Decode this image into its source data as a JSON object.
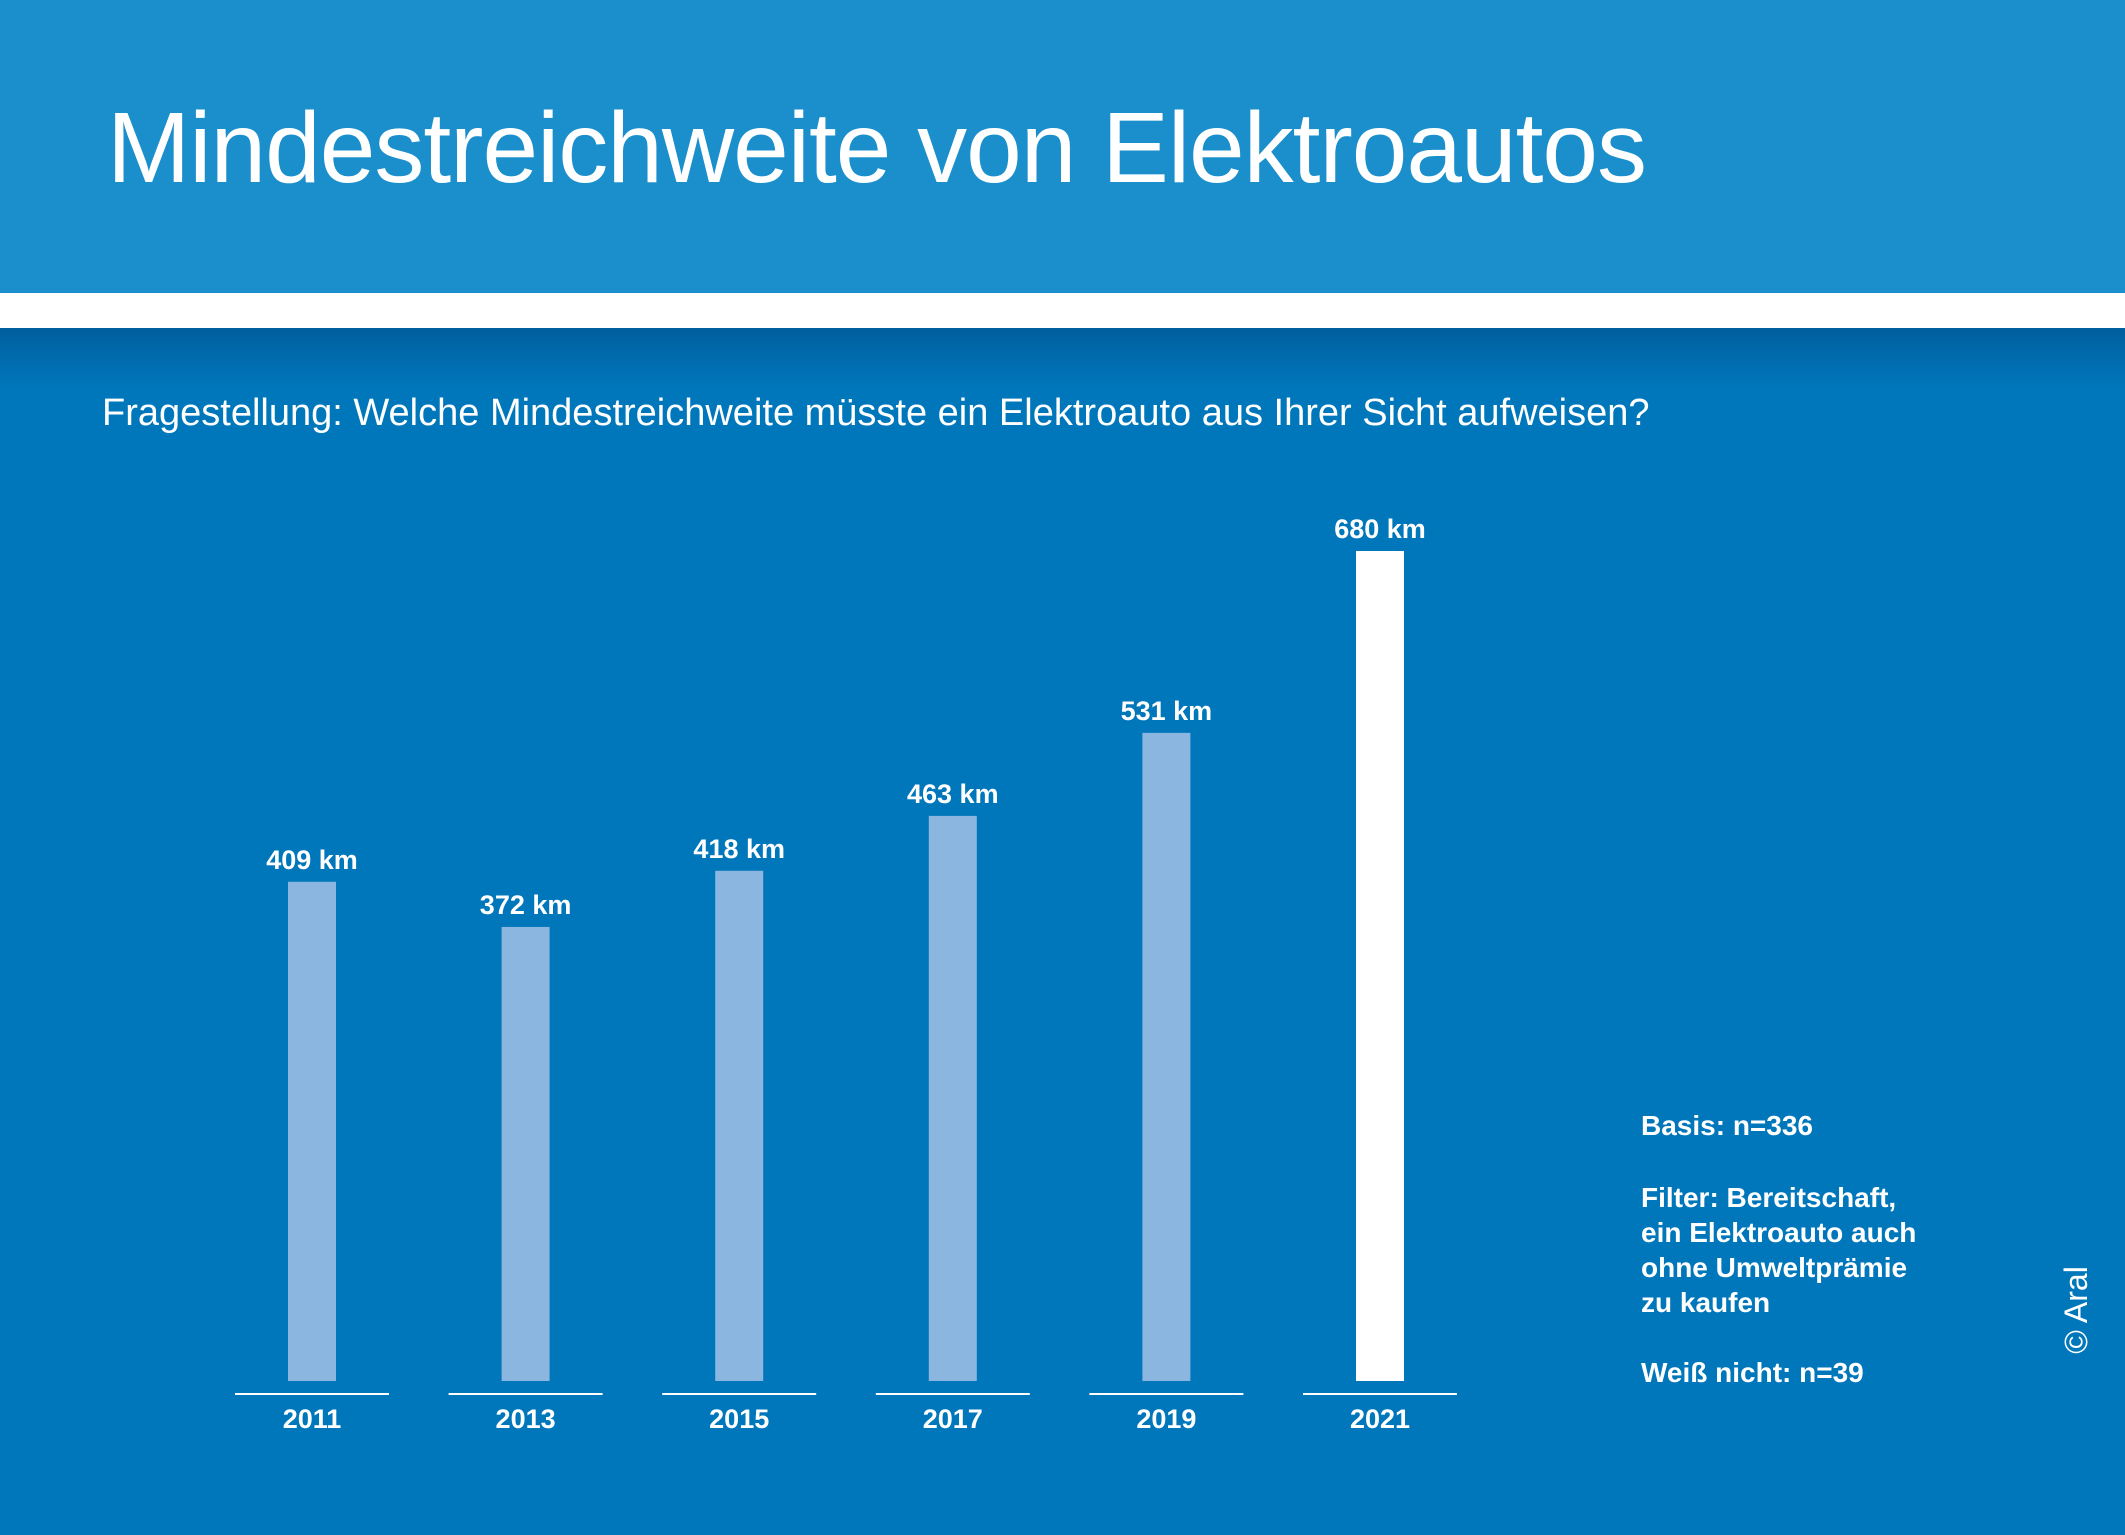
{
  "header": {
    "title": "Mindestreichweite von Elektroautos"
  },
  "question": "Fragestellung: Welche Mindestreichweite müsste ein Elektroauto aus Ihrer Sicht aufweisen?",
  "notes": {
    "basis": "Basis: n=336",
    "filter_lines": [
      "Filter: Bereitschaft,",
      "ein Elektroauto auch",
      "ohne Umweltprämie",
      "zu kaufen"
    ],
    "unknown": "Weiß nicht: n=39"
  },
  "copyright": "© Aral",
  "colors": {
    "header_bg": "#1a8fcc",
    "main_bg": "#0077bb",
    "bar": "#8ab6e0",
    "bar_highlight": "#ffffff",
    "text": "#ffffff"
  },
  "chart_data": {
    "type": "bar",
    "title": "Mindestreichweite von Elektroautos",
    "xlabel": "",
    "ylabel": "",
    "unit": "km",
    "categories": [
      "2011",
      "2013",
      "2015",
      "2017",
      "2019",
      "2021"
    ],
    "values": [
      409,
      372,
      418,
      463,
      531,
      680
    ],
    "labels": [
      "409 km",
      "372 km",
      "418 km",
      "463 km",
      "531 km",
      "680 km"
    ],
    "highlight": [
      false,
      false,
      false,
      false,
      false,
      true
    ],
    "ylim": [
      0,
      680
    ],
    "grid": false,
    "legend": "none"
  }
}
